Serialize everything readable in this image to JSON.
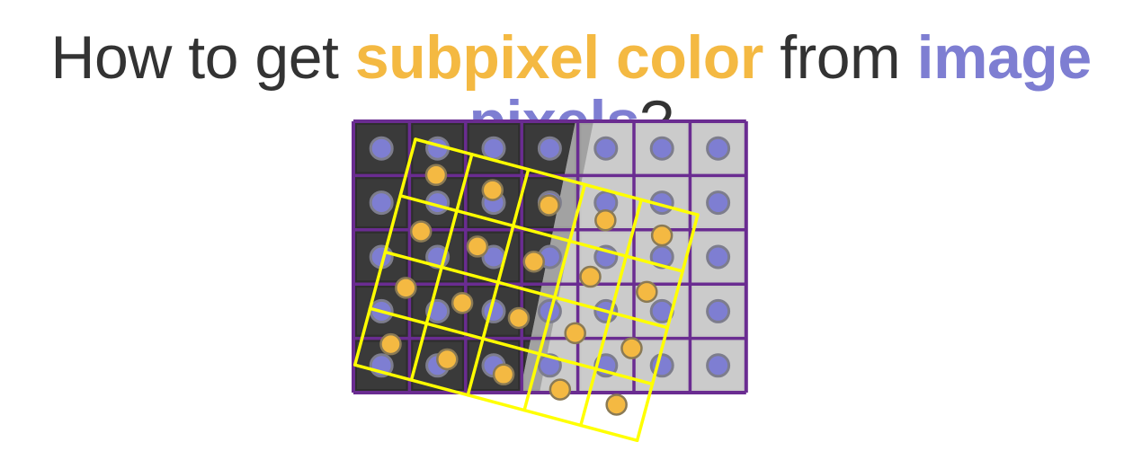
{
  "title": {
    "part1": "How to get ",
    "part2": "subpixel color",
    "part3": " from ",
    "part4": "image pixels",
    "part5": "?"
  },
  "colors": {
    "title_text": "#333333",
    "subpixel_accent": "#F4B942",
    "image_pixel_accent": "#7E7ED2",
    "grid_lines": "#6A2C91",
    "sample_grid": "#FFFF00",
    "dark_pixel": "#2E2E2E",
    "light_pixel": "#C8C8C8"
  },
  "image_grid": {
    "columns": 7,
    "rows": 5
  },
  "sample_grid": {
    "columns": 5,
    "rows": 4,
    "rotation_degrees": 15
  }
}
